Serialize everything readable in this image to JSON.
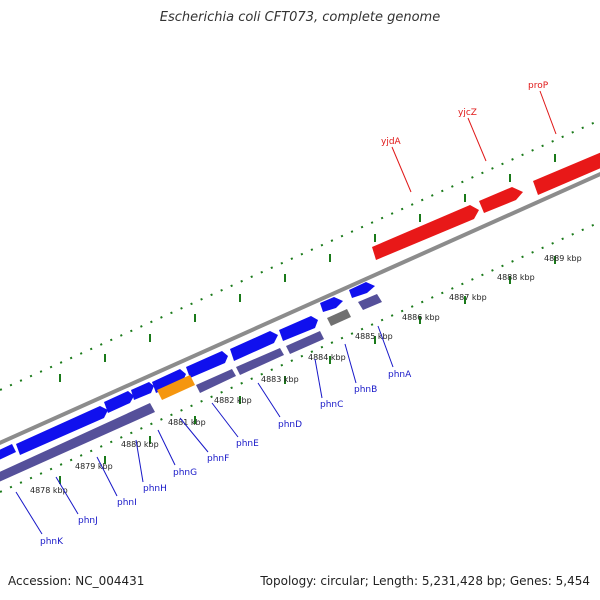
{
  "title": "Escherichia coli CFT073, complete genome",
  "footer": {
    "accession": "Accession: NC_004431",
    "topology": "Topology: circular; Length: 5,231,428 bp; Genes: 5,454"
  },
  "colors": {
    "forward_gene": "#1010ee",
    "reverse_gene": "#55509a",
    "rna_gene": "#e81818",
    "highlight_gene": "#f5960f",
    "pseudo_gene": "#707070",
    "backbone": "#8c8c8c",
    "tick": "#1a7a1a",
    "blue_label": "#1818c8",
    "red_label": "#e01818"
  },
  "kbp_labels": [
    "4878 kbp",
    "4879 kbp",
    "4880 kbp",
    "4881 kbp",
    "4882 kbp",
    "4883 kbp",
    "4884 kbp",
    "4885 kbp",
    "4886 kbp",
    "4887 kbp",
    "4888 kbp",
    "4889 kbp"
  ],
  "gene_labels": [
    "phnK",
    "phnJ",
    "phnI",
    "phnH",
    "phnG",
    "phnF",
    "phnE",
    "phnD",
    "phnC",
    "phnB",
    "phnA",
    "yjdA",
    "yjcZ",
    "proP"
  ]
}
